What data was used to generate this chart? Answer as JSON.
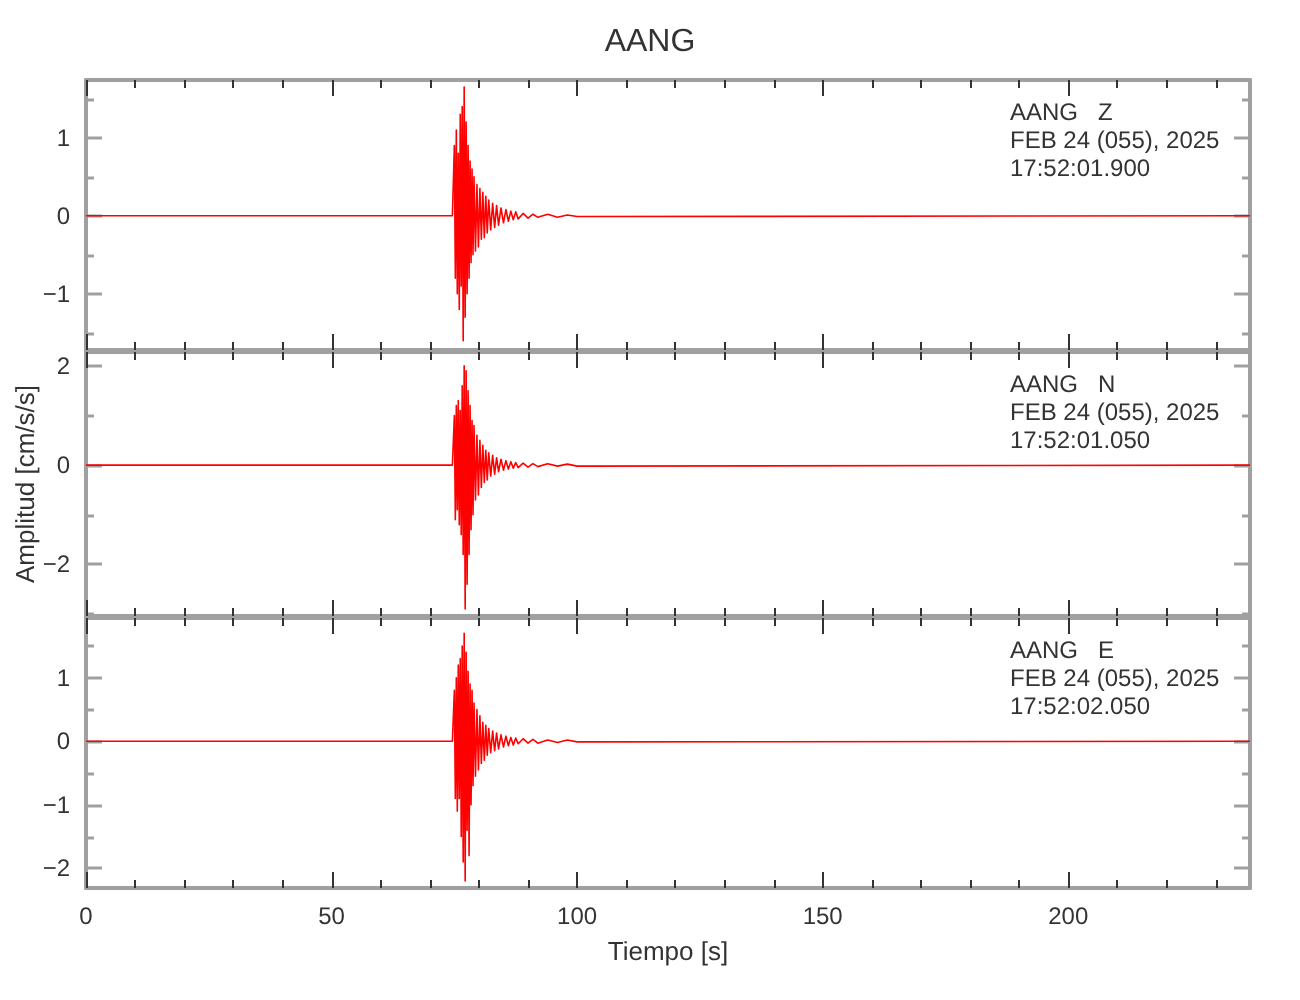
{
  "chart_data": [
    {
      "type": "line",
      "title": "AANG",
      "annotations": [
        "AANG   Z",
        "FEB 24 (055), 2025",
        "17:52:01.900"
      ],
      "x": [
        0,
        74.6,
        75.0,
        75.2,
        75.4,
        75.6,
        75.8,
        76.0,
        76.2,
        76.4,
        76.6,
        76.8,
        77.0,
        77.2,
        77.4,
        77.6,
        77.8,
        78.0,
        78.2,
        78.4,
        78.6,
        78.8,
        79.0,
        79.3,
        79.6,
        79.9,
        80.2,
        80.5,
        80.8,
        81.1,
        81.4,
        81.7,
        82.0,
        82.4,
        82.8,
        83.2,
        83.6,
        84.0,
        84.5,
        85.0,
        85.5,
        86.0,
        86.5,
        87.0,
        87.5,
        88.0,
        89.0,
        90.0,
        91.0,
        92.0,
        94.0,
        96.0,
        98.0,
        100.0,
        237
      ],
      "series": [
        {
          "color": "#ff0000",
          "values": [
            0,
            0,
            0.9,
            -0.8,
            1.1,
            -1.0,
            0.8,
            -1.2,
            1.3,
            -0.9,
            1.4,
            -1.6,
            1.65,
            -1.3,
            1.2,
            -1.0,
            0.9,
            -0.8,
            0.7,
            -0.6,
            0.6,
            -0.5,
            0.5,
            -0.45,
            0.4,
            -0.4,
            0.35,
            -0.3,
            0.3,
            -0.28,
            0.25,
            -0.22,
            0.2,
            -0.18,
            0.16,
            -0.15,
            0.13,
            -0.12,
            0.1,
            -0.09,
            0.08,
            -0.07,
            0.06,
            -0.05,
            0.05,
            -0.04,
            0.03,
            -0.03,
            0.02,
            -0.02,
            0.02,
            -0.02,
            0.01,
            -0.01,
            0
          ]
        }
      ],
      "xlim": [
        0,
        237
      ],
      "xticks": [
        0,
        {
          "value": 10,
          "label": null
        },
        {
          "value": 20,
          "label": null
        },
        {
          "value": 30,
          "label": null
        },
        {
          "value": 40,
          "label": null
        },
        50,
        {
          "value": 60,
          "label": null
        },
        {
          "value": 70,
          "label": null
        },
        {
          "value": 80,
          "label": null
        },
        {
          "value": 90,
          "label": null
        },
        100,
        {
          "value": 110,
          "label": null
        },
        {
          "value": 120,
          "label": null
        },
        {
          "value": 130,
          "label": null
        },
        {
          "value": 140,
          "label": null
        },
        150,
        {
          "value": 160,
          "label": null
        },
        {
          "value": 170,
          "label": null
        },
        {
          "value": 180,
          "label": null
        },
        {
          "value": 190,
          "label": null
        },
        200,
        {
          "value": 210,
          "label": null
        },
        {
          "value": 220,
          "label": null
        },
        {
          "value": 230,
          "label": null
        }
      ],
      "ylim": [
        -1.72,
        1.74
      ],
      "yticks": [
        {
          "value": -1.5,
          "label": null
        },
        -1,
        {
          "value": -0.5,
          "label": null
        },
        0,
        {
          "value": 0.5,
          "label": null
        },
        1,
        {
          "value": 1.5,
          "label": null
        }
      ],
      "tick_labels": "y",
      "marker": "none",
      "line_style": "solid"
    },
    {
      "type": "line",
      "ylabel": "Amplitud [cm/s/s]",
      "annotations": [
        "AANG   N",
        "FEB 24 (055), 2025",
        "17:52:01.050"
      ],
      "x": [
        0,
        74.6,
        75.0,
        75.2,
        75.4,
        75.6,
        75.8,
        76.0,
        76.2,
        76.4,
        76.6,
        76.8,
        77.0,
        77.2,
        77.4,
        77.6,
        77.8,
        78.0,
        78.2,
        78.4,
        78.6,
        78.8,
        79.0,
        79.3,
        79.6,
        79.9,
        80.2,
        80.5,
        80.8,
        81.1,
        81.4,
        81.7,
        82.0,
        82.4,
        82.8,
        83.2,
        83.6,
        84.0,
        84.5,
        85.0,
        85.5,
        86.0,
        86.5,
        87.0,
        87.5,
        88.0,
        89.0,
        90.0,
        91.0,
        92.0,
        94.0,
        96.0,
        98.0,
        100.0,
        237
      ],
      "series": [
        {
          "color": "#ff0000",
          "values": [
            0,
            0,
            1.0,
            -1.1,
            1.2,
            -0.9,
            1.3,
            -1.2,
            1.1,
            -1.4,
            1.6,
            -1.8,
            2.0,
            -2.9,
            1.9,
            -2.4,
            1.5,
            -1.8,
            1.2,
            -1.3,
            0.9,
            -1.0,
            0.8,
            -0.7,
            0.6,
            -0.6,
            0.5,
            -0.45,
            0.4,
            -0.35,
            0.3,
            -0.3,
            0.25,
            -0.22,
            0.2,
            -0.18,
            0.15,
            -0.13,
            0.12,
            -0.1,
            0.09,
            -0.08,
            0.07,
            -0.06,
            0.05,
            -0.05,
            0.04,
            -0.04,
            0.03,
            -0.03,
            0.03,
            -0.02,
            0.02,
            -0.02,
            0
          ]
        }
      ],
      "xlim": [
        0,
        237
      ],
      "xticks": [
        0,
        {
          "value": 10,
          "label": null
        },
        {
          "value": 20,
          "label": null
        },
        {
          "value": 30,
          "label": null
        },
        {
          "value": 40,
          "label": null
        },
        50,
        {
          "value": 60,
          "label": null
        },
        {
          "value": 70,
          "label": null
        },
        {
          "value": 80,
          "label": null
        },
        {
          "value": 90,
          "label": null
        },
        100,
        {
          "value": 110,
          "label": null
        },
        {
          "value": 120,
          "label": null
        },
        {
          "value": 130,
          "label": null
        },
        {
          "value": 140,
          "label": null
        },
        150,
        {
          "value": 160,
          "label": null
        },
        {
          "value": 170,
          "label": null
        },
        {
          "value": 180,
          "label": null
        },
        {
          "value": 190,
          "label": null
        },
        200,
        {
          "value": 210,
          "label": null
        },
        {
          "value": 220,
          "label": null
        },
        {
          "value": 230,
          "label": null
        }
      ],
      "ylim": [
        -3.04,
        2.28
      ],
      "yticks": [
        {
          "value": -3,
          "label": null
        },
        -2,
        {
          "value": -1,
          "label": null
        },
        0,
        {
          "value": 1,
          "label": null
        },
        2
      ],
      "tick_labels": "y",
      "marker": "none",
      "line_style": "solid"
    },
    {
      "type": "line",
      "xlabel": "Tiempo [s]",
      "annotations": [
        "AANG   E",
        "FEB 24 (055), 2025",
        "17:52:02.050"
      ],
      "x": [
        0,
        74.6,
        75.0,
        75.2,
        75.4,
        75.6,
        75.8,
        76.0,
        76.2,
        76.4,
        76.6,
        76.8,
        77.0,
        77.2,
        77.4,
        77.6,
        77.8,
        78.0,
        78.2,
        78.4,
        78.6,
        78.8,
        79.0,
        79.3,
        79.6,
        79.9,
        80.2,
        80.5,
        80.8,
        81.1,
        81.4,
        81.7,
        82.0,
        82.4,
        82.8,
        83.2,
        83.6,
        84.0,
        84.5,
        85.0,
        85.5,
        86.0,
        86.5,
        87.0,
        87.5,
        88.0,
        89.0,
        90.0,
        91.0,
        92.0,
        94.0,
        96.0,
        98.0,
        100.0,
        237
      ],
      "series": [
        {
          "color": "#ff0000",
          "values": [
            0,
            0,
            0.8,
            -0.9,
            1.0,
            -1.1,
            1.2,
            -0.9,
            1.3,
            -1.5,
            1.5,
            -1.9,
            1.7,
            -2.2,
            1.4,
            -1.4,
            1.1,
            -1.8,
            0.9,
            -1.0,
            0.8,
            -0.7,
            0.6,
            -0.55,
            0.5,
            -0.45,
            0.4,
            -0.35,
            0.3,
            -0.3,
            0.25,
            -0.22,
            0.2,
            -0.18,
            0.16,
            -0.15,
            0.13,
            -0.12,
            0.1,
            -0.09,
            0.08,
            -0.07,
            0.06,
            -0.06,
            0.05,
            -0.04,
            0.04,
            -0.03,
            0.03,
            -0.03,
            0.02,
            -0.02,
            0.02,
            -0.01,
            0
          ]
        }
      ],
      "xlim": [
        0,
        237
      ],
      "xticks": [
        0,
        {
          "value": 10,
          "label": null
        },
        {
          "value": 20,
          "label": null
        },
        {
          "value": 30,
          "label": null
        },
        {
          "value": 40,
          "label": null
        },
        50,
        {
          "value": 60,
          "label": null
        },
        {
          "value": 70,
          "label": null
        },
        {
          "value": 80,
          "label": null
        },
        {
          "value": 90,
          "label": null
        },
        100,
        {
          "value": 110,
          "label": null
        },
        {
          "value": 120,
          "label": null
        },
        {
          "value": 130,
          "label": null
        },
        {
          "value": 140,
          "label": null
        },
        150,
        {
          "value": 160,
          "label": null
        },
        {
          "value": 170,
          "label": null
        },
        {
          "value": 180,
          "label": null
        },
        {
          "value": 190,
          "label": null
        },
        200,
        {
          "value": 210,
          "label": null
        },
        {
          "value": 220,
          "label": null
        },
        {
          "value": 230,
          "label": null
        }
      ],
      "ylim": [
        -2.31,
        1.94
      ],
      "yticks": [
        -2,
        {
          "value": -1.5,
          "label": null
        },
        -1,
        {
          "value": -0.5,
          "label": null
        },
        0,
        {
          "value": 0.5,
          "label": null
        },
        1,
        {
          "value": 1.5,
          "label": null
        }
      ],
      "marker": "none",
      "line_style": "solid"
    }
  ]
}
